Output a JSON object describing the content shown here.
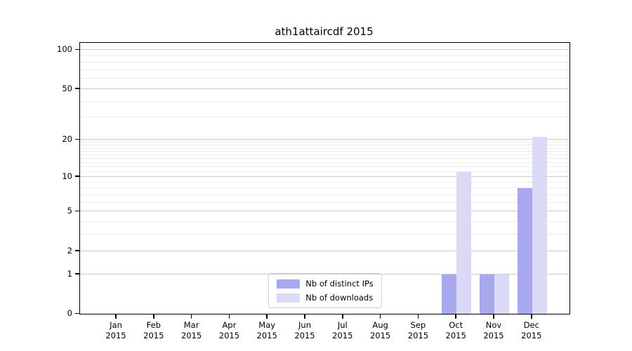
{
  "chart_data": {
    "type": "bar",
    "title": "ath1attaircdf 2015",
    "x_axis": {
      "months": [
        "Jan",
        "Feb",
        "Mar",
        "Apr",
        "May",
        "Jun",
        "Jul",
        "Aug",
        "Sep",
        "Oct",
        "Nov",
        "Dec"
      ],
      "year": "2015"
    },
    "y_axis": {
      "scale": "log10(value+1)",
      "ticks": [
        0,
        1,
        2,
        5,
        10,
        20,
        50,
        100
      ],
      "minor_gridlines": [
        3,
        4,
        6,
        7,
        8,
        9,
        11,
        12,
        13,
        14,
        15,
        16,
        17,
        18,
        19,
        30,
        40,
        60,
        70,
        80,
        90
      ],
      "range": [
        0,
        110
      ]
    },
    "series": [
      {
        "name": "Nb of distinct IPs",
        "color": "#a8a8ee",
        "values": [
          0,
          0,
          0,
          0,
          0,
          0,
          0,
          0,
          0,
          1,
          1,
          8
        ]
      },
      {
        "name": "Nb of downloads",
        "color": "#dadaf6",
        "values": [
          0,
          0,
          0,
          0,
          0,
          0,
          0,
          0,
          0,
          11,
          1,
          21
        ]
      }
    ],
    "legend": {
      "position": "lower-center",
      "entries": [
        "Nb of distinct IPs",
        "Nb of downloads"
      ]
    },
    "grid": {
      "major_color": "#cccccc",
      "minor_color": "#ebebeb"
    },
    "axis_color": "#000000"
  }
}
